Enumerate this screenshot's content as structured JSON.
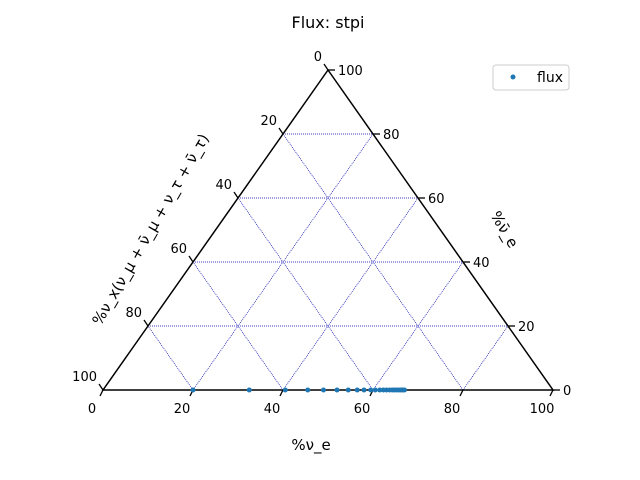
{
  "chart_data": {
    "type": "scatter",
    "projection": "ternary",
    "title": "Flux: stpi",
    "axes": {
      "bottom": {
        "label": "%ν_e",
        "range": [
          0,
          100
        ],
        "ticks": [
          0,
          20,
          40,
          60,
          80,
          100
        ],
        "tick_labels": [
          "0",
          "20",
          "40",
          "60",
          "80",
          "100"
        ]
      },
      "right": {
        "label": "%ν̄_e",
        "range": [
          0,
          100
        ],
        "ticks": [
          0,
          20,
          40,
          60,
          80,
          100
        ],
        "tick_labels": [
          "0",
          "20",
          "40",
          "60",
          "80",
          "100"
        ]
      },
      "left": {
        "label": "%ν_x(ν_μ + ν̄_μ + ν_τ + ν̄_τ)",
        "range": [
          0,
          100
        ],
        "ticks": [
          0,
          20,
          40,
          60,
          80,
          100
        ],
        "tick_labels": [
          "0",
          "20",
          "40",
          "60",
          "80",
          "100"
        ]
      }
    },
    "grid": true,
    "grid_color": "#0000aa",
    "edge_color": "#000000",
    "point_color": "#1f77b4",
    "legend": {
      "position": "top-right",
      "entries": [
        "flux"
      ]
    },
    "series": [
      {
        "name": "flux",
        "points": [
          {
            "nu_e": 20.0,
            "nu_e_bar": 0
          },
          {
            "nu_e": 32.5,
            "nu_e_bar": 0
          },
          {
            "nu_e": 40.5,
            "nu_e_bar": 0
          },
          {
            "nu_e": 45.5,
            "nu_e_bar": 0
          },
          {
            "nu_e": 49.0,
            "nu_e_bar": 0
          },
          {
            "nu_e": 52.0,
            "nu_e_bar": 0
          },
          {
            "nu_e": 54.5,
            "nu_e_bar": 0
          },
          {
            "nu_e": 56.5,
            "nu_e_bar": 0
          },
          {
            "nu_e": 58.0,
            "nu_e_bar": 0
          },
          {
            "nu_e": 59.5,
            "nu_e_bar": 0
          },
          {
            "nu_e": 60.5,
            "nu_e_bar": 0
          },
          {
            "nu_e": 61.5,
            "nu_e_bar": 0
          },
          {
            "nu_e": 62.3,
            "nu_e_bar": 0
          },
          {
            "nu_e": 63.0,
            "nu_e_bar": 0
          },
          {
            "nu_e": 63.7,
            "nu_e_bar": 0
          },
          {
            "nu_e": 64.3,
            "nu_e_bar": 0
          },
          {
            "nu_e": 64.8,
            "nu_e_bar": 0
          },
          {
            "nu_e": 65.3,
            "nu_e_bar": 0
          },
          {
            "nu_e": 65.8,
            "nu_e_bar": 0
          },
          {
            "nu_e": 66.2,
            "nu_e_bar": 0
          },
          {
            "nu_e": 66.6,
            "nu_e_bar": 0
          },
          {
            "nu_e": 67.0,
            "nu_e_bar": 0
          }
        ]
      }
    ]
  }
}
